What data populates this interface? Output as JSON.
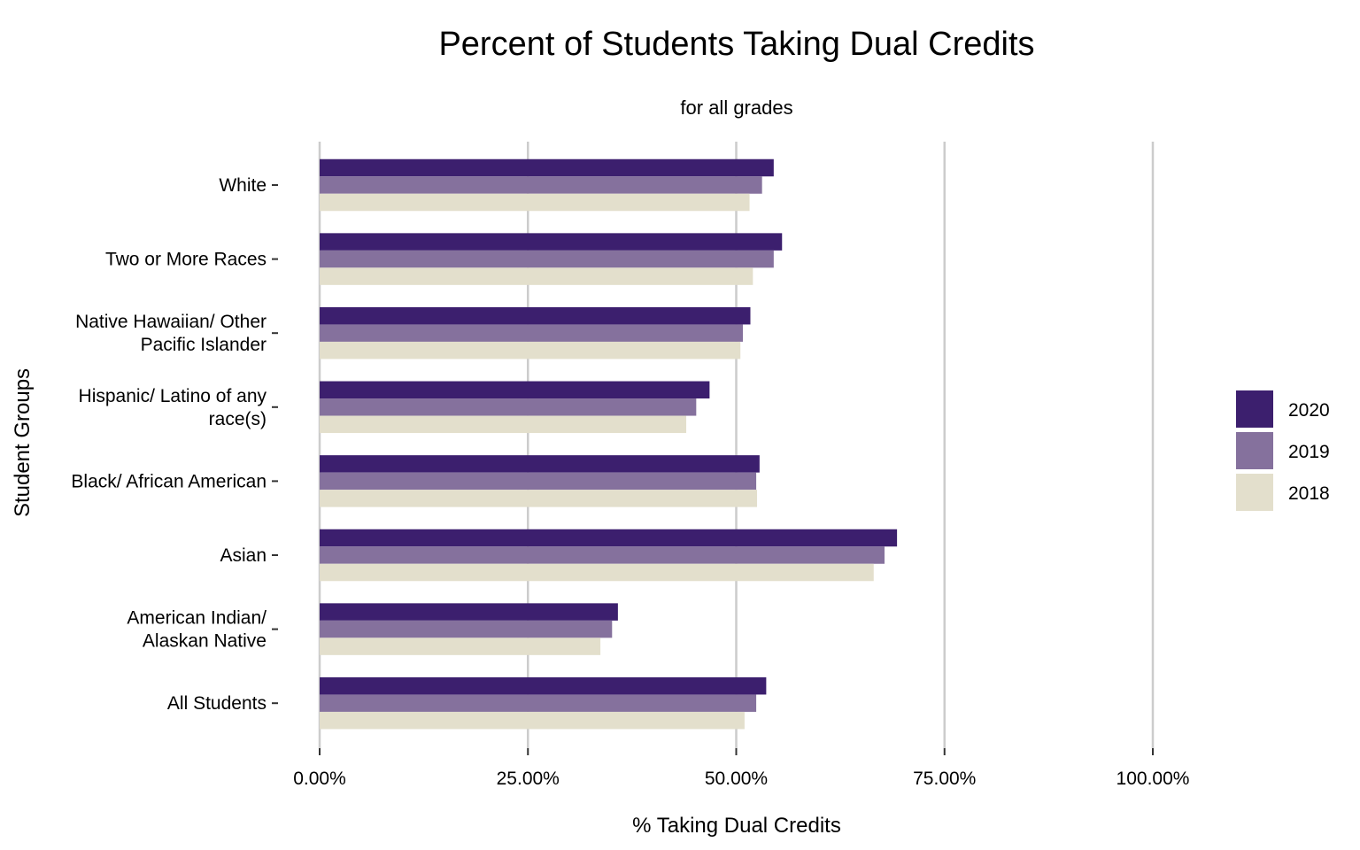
{
  "chart_data": {
    "type": "bar",
    "orientation": "horizontal",
    "title": "Percent of Students Taking Dual Credits",
    "subtitle": "for all grades",
    "xlabel": "% Taking Dual Credits",
    "ylabel": "Student Groups",
    "xlim": [
      0,
      100
    ],
    "x_ticks": [
      0,
      25,
      50,
      75,
      100
    ],
    "x_tick_labels": [
      "0.00%",
      "25.00%",
      "50.00%",
      "75.00%",
      "100.00%"
    ],
    "grid": "vertical major",
    "legend_position": "right",
    "categories": [
      [
        "White"
      ],
      [
        "Two or More Races"
      ],
      [
        "Native Hawaiian/ Other",
        "Pacific Islander"
      ],
      [
        "Hispanic/ Latino of any",
        "race(s)"
      ],
      [
        "Black/ African American"
      ],
      [
        "Asian"
      ],
      [
        "American Indian/",
        "Alaskan Native"
      ],
      [
        "All Students"
      ]
    ],
    "series": [
      {
        "name": "2020",
        "color": "#3c1f6e",
        "values": [
          54.5,
          55.5,
          51.7,
          46.8,
          52.8,
          69.3,
          35.8,
          53.6
        ]
      },
      {
        "name": "2019",
        "color": "#85719d",
        "values": [
          53.1,
          54.5,
          50.8,
          45.2,
          52.4,
          67.8,
          35.1,
          52.4
        ]
      },
      {
        "name": "2018",
        "color": "#e3dfcc",
        "values": [
          51.6,
          52.0,
          50.5,
          44.0,
          52.5,
          66.5,
          33.7,
          51.0
        ]
      }
    ]
  }
}
